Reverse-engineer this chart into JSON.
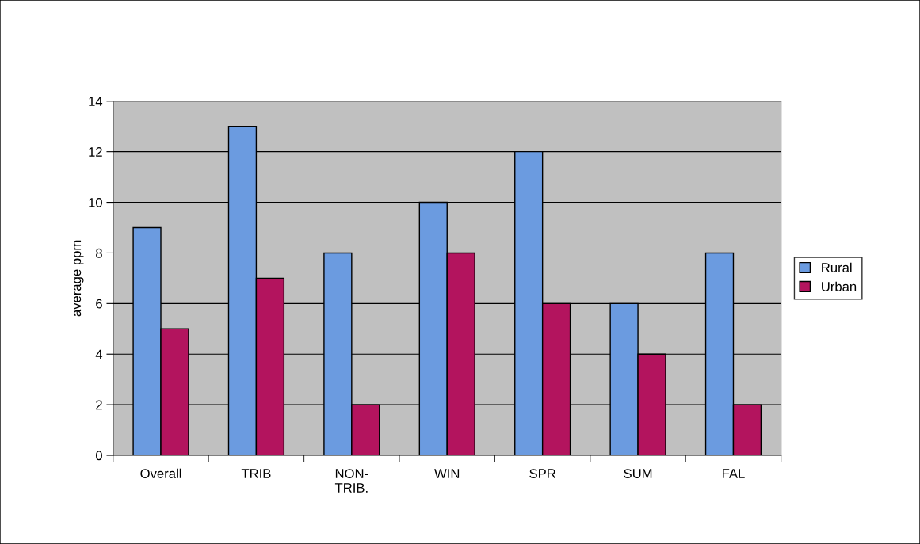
{
  "chart_data": {
    "type": "bar",
    "ylabel": "average ppm",
    "categories": [
      "Overall",
      "TRIB",
      "NON-\nTRIB.",
      "WIN",
      "SPR",
      "SUM",
      "FAL"
    ],
    "series": [
      {
        "name": "Rural",
        "color": "#6b9be0",
        "values": [
          9,
          13,
          8,
          10,
          12,
          6,
          8
        ]
      },
      {
        "name": "Urban",
        "color": "#b3145e",
        "values": [
          5,
          7,
          2,
          8,
          6,
          4,
          2
        ]
      }
    ],
    "ylim": [
      0,
      14
    ],
    "yticks": [
      0,
      2,
      4,
      6,
      8,
      10,
      12,
      14
    ],
    "grid": "y",
    "legend": "right"
  }
}
